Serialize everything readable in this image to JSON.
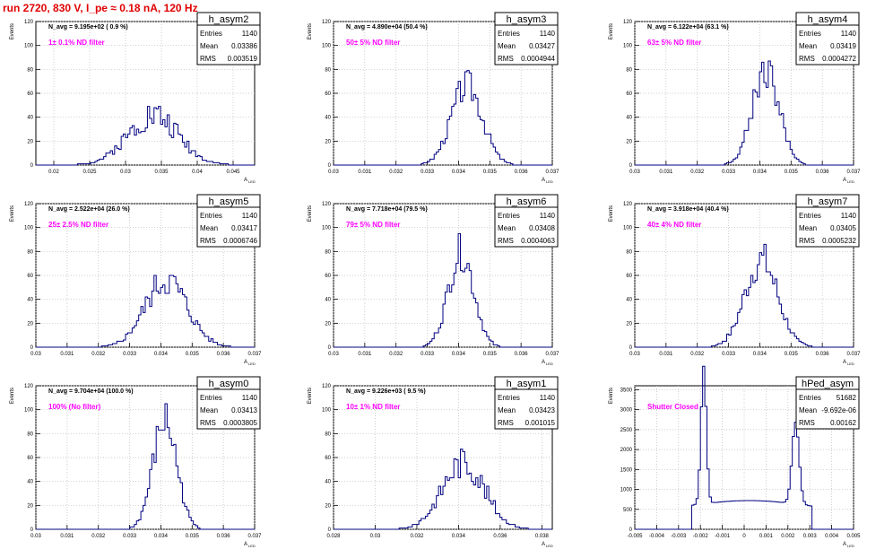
{
  "page_title": "run 2720,   830 V, I_pe ≈ 0.18 nA, 120 Hz",
  "colors": {
    "histogram": "#000080",
    "annotation": "#ff00ff",
    "title": "#e00000",
    "grid": "#bbbbbb"
  },
  "chart_data": [
    {
      "type": "histogram",
      "name": "h_asym2",
      "ylabel": "Events",
      "xlabel": "A",
      "xlabel_sub": "LED",
      "navg": "N_avg = 9.195e+02 ( 0.9 %)",
      "annotation": "1± 0.1% ND filter",
      "stats": {
        "Entries": "1140",
        "Mean": "0.03386",
        "RMS": "0.003519"
      },
      "xlim": [
        0.0175,
        0.048
      ],
      "ylim": [
        0,
        120
      ],
      "xticks": [
        0.02,
        0.025,
        0.03,
        0.035,
        0.04,
        0.045
      ],
      "xtick_labels": [
        "0.02",
        "0.025",
        "0.03",
        "0.035",
        "0.04",
        "0.045"
      ],
      "yticks": [
        0,
        20,
        40,
        60,
        80,
        100,
        120
      ],
      "mean": 0.03386,
      "rms": 0.003519,
      "peak": 42,
      "jitter": 0.3,
      "seed": 2,
      "bins": 100
    },
    {
      "type": "histogram",
      "name": "h_asym3",
      "ylabel": "Events",
      "xlabel": "A",
      "xlabel_sub": "LED",
      "navg": "N_avg = 4.890e+04 (50.4 %)",
      "annotation": "50± 5% ND filter",
      "stats": {
        "Entries": "1140",
        "Mean": "0.03427",
        "RMS": "0.0004944"
      },
      "xlim": [
        0.03,
        0.037
      ],
      "ylim": [
        0,
        120
      ],
      "xticks": [
        0.03,
        0.031,
        0.032,
        0.033,
        0.034,
        0.035,
        0.036,
        0.037
      ],
      "xtick_labels": [
        "0.03",
        "0.031",
        "0.032",
        "0.033",
        "0.034",
        "0.035",
        "0.036",
        "0.037"
      ],
      "yticks": [
        0,
        20,
        40,
        60,
        80,
        100,
        120
      ],
      "mean": 0.03427,
      "rms": 0.0004944,
      "peak": 67,
      "jitter": 0.2,
      "seed": 3,
      "bins": 100
    },
    {
      "type": "histogram",
      "name": "h_asym4",
      "ylabel": "Events",
      "xlabel": "A",
      "xlabel_sub": "LED",
      "navg": "N_avg = 6.122e+04 (63.1 %)",
      "annotation": "63± 5% ND filter",
      "stats": {
        "Entries": "1140",
        "Mean": "0.03419",
        "RMS": "0.0004272"
      },
      "xlim": [
        0.03,
        0.037
      ],
      "ylim": [
        0,
        120
      ],
      "xticks": [
        0.03,
        0.031,
        0.032,
        0.033,
        0.034,
        0.035,
        0.036,
        0.037
      ],
      "xtick_labels": [
        "0.03",
        "0.031",
        "0.032",
        "0.033",
        "0.034",
        "0.035",
        "0.036",
        "0.037"
      ],
      "yticks": [
        0,
        20,
        40,
        60,
        80,
        100,
        120
      ],
      "mean": 0.03419,
      "rms": 0.0004272,
      "peak": 80,
      "jitter": 0.2,
      "seed": 4,
      "bins": 100
    },
    {
      "type": "histogram",
      "name": "h_asym5",
      "ylabel": "Events",
      "xlabel": "A",
      "xlabel_sub": "LED",
      "navg": "N_avg = 2.522e+04 (26.0 %)",
      "annotation": "25± 2.5% ND filter",
      "stats": {
        "Entries": "1140",
        "Mean": "0.03417",
        "RMS": "0.0006746"
      },
      "xlim": [
        0.03,
        0.037
      ],
      "ylim": [
        0,
        120
      ],
      "xticks": [
        0.03,
        0.031,
        0.032,
        0.033,
        0.034,
        0.035,
        0.036,
        0.037
      ],
      "xtick_labels": [
        "0.03",
        "0.031",
        "0.032",
        "0.033",
        "0.034",
        "0.035",
        "0.036",
        "0.037"
      ],
      "yticks": [
        0,
        20,
        40,
        60,
        80,
        100,
        120
      ],
      "mean": 0.03417,
      "rms": 0.0006746,
      "peak": 56,
      "jitter": 0.25,
      "seed": 5,
      "bins": 100
    },
    {
      "type": "histogram",
      "name": "h_asym6",
      "ylabel": "Events",
      "xlabel": "A",
      "xlabel_sub": "LED",
      "navg": "N_avg = 7.718e+04 (79.5 %)",
      "annotation": "79± 5% ND filter",
      "stats": {
        "Entries": "1140",
        "Mean": "0.03408",
        "RMS": "0.0004063"
      },
      "xlim": [
        0.03,
        0.037
      ],
      "ylim": [
        0,
        120
      ],
      "xticks": [
        0.03,
        0.031,
        0.032,
        0.033,
        0.034,
        0.035,
        0.036,
        0.037
      ],
      "xtick_labels": [
        "0.03",
        "0.031",
        "0.032",
        "0.033",
        "0.034",
        "0.035",
        "0.036",
        "0.037"
      ],
      "yticks": [
        0,
        20,
        40,
        60,
        80,
        100,
        120
      ],
      "mean": 0.03408,
      "rms": 0.0004063,
      "peak": 80,
      "jitter": 0.2,
      "seed": 6,
      "bins": 100
    },
    {
      "type": "histogram",
      "name": "h_asym7",
      "ylabel": "Events",
      "xlabel": "A",
      "xlabel_sub": "LED",
      "navg": "N_avg = 3.918e+04 (40.4 %)",
      "annotation": "40± 4% ND filter",
      "stats": {
        "Entries": "1140",
        "Mean": "0.03405",
        "RMS": "0.0005232"
      },
      "xlim": [
        0.03,
        0.037
      ],
      "ylim": [
        0,
        120
      ],
      "xticks": [
        0.03,
        0.031,
        0.032,
        0.033,
        0.034,
        0.035,
        0.036,
        0.037
      ],
      "xtick_labels": [
        "0.03",
        "0.031",
        "0.032",
        "0.033",
        "0.034",
        "0.035",
        "0.036",
        "0.037"
      ],
      "yticks": [
        0,
        20,
        40,
        60,
        80,
        100,
        120
      ],
      "mean": 0.03405,
      "rms": 0.0005232,
      "peak": 73,
      "jitter": 0.22,
      "seed": 7,
      "bins": 100
    },
    {
      "type": "histogram",
      "name": "h_asym0",
      "ylabel": "Events",
      "xlabel": "A",
      "xlabel_sub": "LED",
      "navg": "N_avg = 9.704e+04 (100.0 %)",
      "annotation": "100% (No filter)",
      "stats": {
        "Entries": "1140",
        "Mean": "0.03413",
        "RMS": "0.0003805"
      },
      "xlim": [
        0.03,
        0.037
      ],
      "ylim": [
        0,
        120
      ],
      "xticks": [
        0.03,
        0.031,
        0.032,
        0.033,
        0.034,
        0.035,
        0.036,
        0.037
      ],
      "xtick_labels": [
        "0.03",
        "0.031",
        "0.032",
        "0.033",
        "0.034",
        "0.035",
        "0.036",
        "0.037"
      ],
      "yticks": [
        0,
        20,
        40,
        60,
        80,
        100,
        120
      ],
      "mean": 0.03413,
      "rms": 0.0003805,
      "peak": 91,
      "jitter": 0.2,
      "seed": 8,
      "bins": 100
    },
    {
      "type": "histogram",
      "name": "h_asym1",
      "ylabel": "Events",
      "xlabel": "A",
      "xlabel_sub": "LED",
      "navg": "N_avg = 9.226e+03 ( 9.5 %)",
      "annotation": "10± 1% ND filter",
      "stats": {
        "Entries": "1140",
        "Mean": "0.03423",
        "RMS": "0.001015"
      },
      "xlim": [
        0.028,
        0.0385
      ],
      "ylim": [
        0,
        120
      ],
      "xticks": [
        0.028,
        0.03,
        0.032,
        0.034,
        0.036,
        0.038
      ],
      "xtick_labels": [
        "0.028",
        "0.03",
        "0.032",
        "0.034",
        "0.036",
        "0.038"
      ],
      "yticks": [
        0,
        20,
        40,
        60,
        80,
        100,
        120
      ],
      "mean": 0.03423,
      "rms": 0.001015,
      "peak": 56,
      "jitter": 0.25,
      "seed": 9,
      "bins": 100
    },
    {
      "type": "histogram",
      "name": "hPed_asym",
      "ylabel": "Events",
      "xlabel": "A",
      "xlabel_sub": "LED",
      "navg": "",
      "annotation": "Shutter Closed",
      "stats": {
        "Entries": "51682",
        "Mean": "-9.692e-06",
        "RMS": "0.00162"
      },
      "xlim": [
        -0.005,
        0.005
      ],
      "ylim": [
        0,
        3600
      ],
      "xticks": [
        -0.005,
        -0.004,
        -0.003,
        -0.002,
        -0.001,
        0,
        0.001,
        0.002,
        0.003,
        0.004,
        0.005
      ],
      "xtick_labels": [
        "-0.005",
        "-0.004",
        "-0.003",
        "-0.002",
        "-0.001",
        "0",
        "0.001",
        "0.002",
        "0.003",
        "0.004",
        "0.005"
      ],
      "yticks": [
        0,
        500,
        1000,
        1500,
        2000,
        2500,
        3000,
        3500
      ],
      "mode": "pedestal",
      "peaks": [
        {
          "x": -0.00185,
          "h": 3450,
          "w": 0.00012
        },
        {
          "x": 0.00235,
          "h": 2050,
          "w": 0.00016
        }
      ],
      "floor": 600,
      "bins": 100
    }
  ]
}
